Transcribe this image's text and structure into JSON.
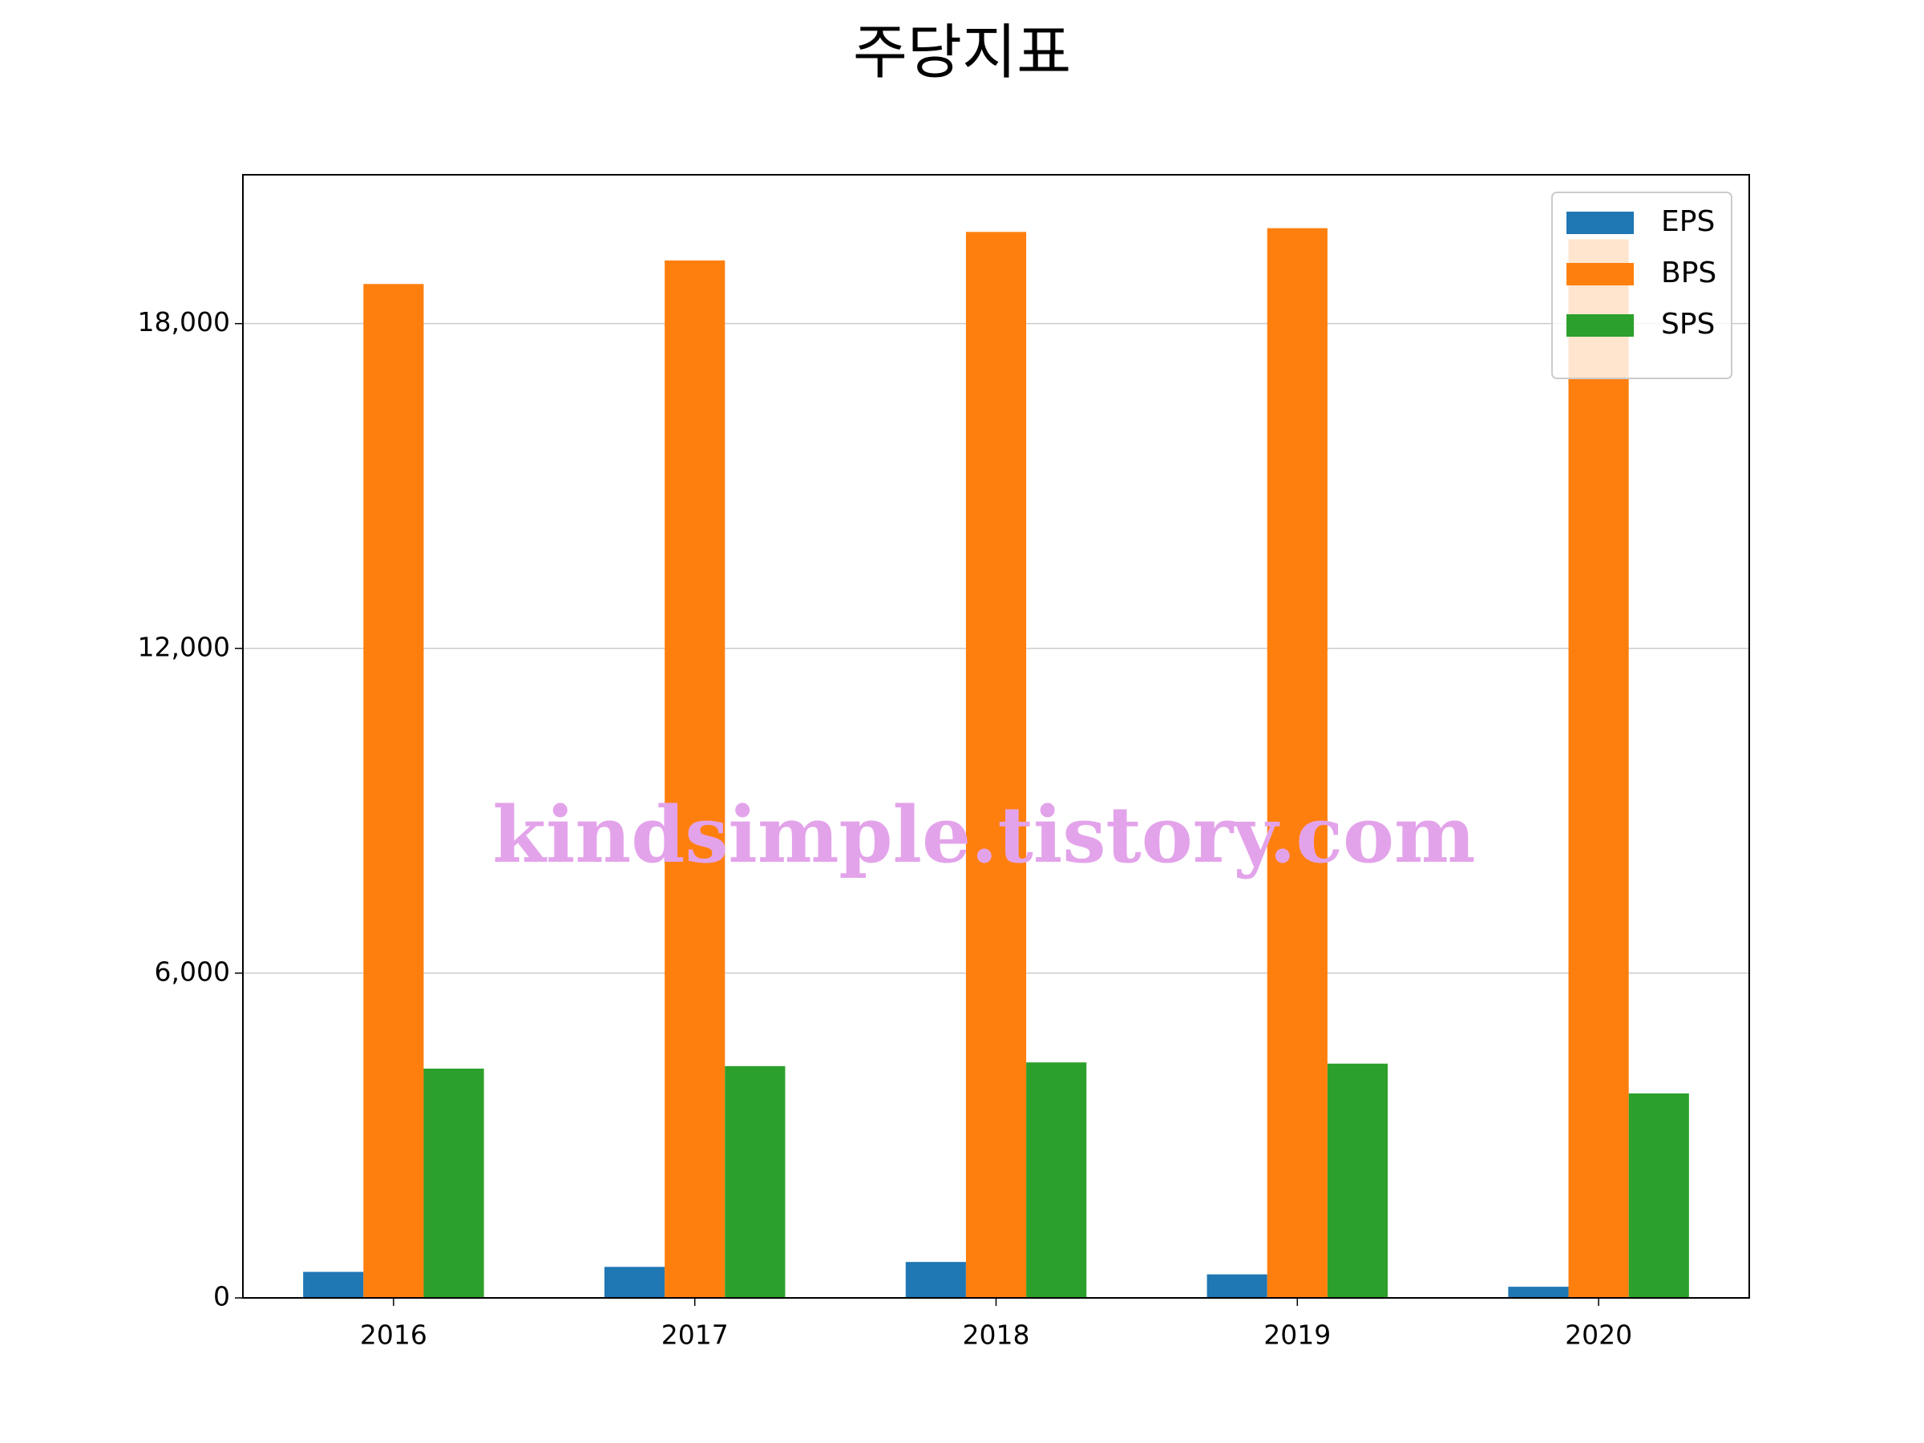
{
  "chart_data": {
    "type": "bar",
    "title": "주당지표",
    "categories": [
      "2016",
      "2017",
      "2018",
      "2019",
      "2020"
    ],
    "series": [
      {
        "name": "EPS",
        "color": "#1f77b4",
        "values": [
          481,
          573,
          664,
          435,
          206
        ]
      },
      {
        "name": "BPS",
        "color": "#ff7f0e",
        "values": [
          18732,
          19167,
          19694,
          19763,
          19557
        ]
      },
      {
        "name": "SPS",
        "color": "#2ca02c",
        "values": [
          4236,
          4282,
          4351,
          4328,
          3778
        ]
      }
    ],
    "ylim": [
      0,
      20750
    ],
    "yticks": [
      0,
      {
        "value": 6000,
        "label": "6,000"
      },
      {
        "value": 12000,
        "label": "12,000"
      },
      {
        "value": 18000,
        "label": "18,000"
      }
    ],
    "grid": true,
    "legend": "upper right",
    "watermark": "kindsimple.tistory.com"
  }
}
